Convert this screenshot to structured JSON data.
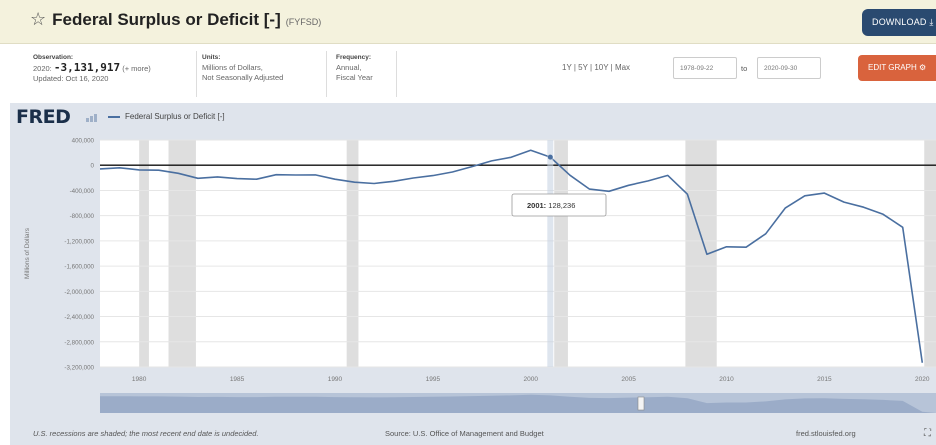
{
  "header": {
    "title": "Federal Surplus or Deficit [-]",
    "series_id": "(FYFSD)",
    "download_label": "DOWNLOAD"
  },
  "meta": {
    "observation_label": "Observation:",
    "observation_period": "2020:",
    "observation_value": "-3,131,917",
    "observation_more": "(+ more)",
    "updated": "Updated: Oct 16, 2020",
    "units_label": "Units:",
    "units_line1": "Millions of Dollars,",
    "units_line2": "Not Seasonally Adjusted",
    "frequency_label": "Frequency:",
    "frequency_line1": "Annual,",
    "frequency_line2": "Fiscal Year"
  },
  "controls": {
    "ranges": "1Y | 5Y | 10Y | Max",
    "start_date": "1978-09-22",
    "to_label": "to",
    "end_date": "2020-09-30",
    "edit_label": "EDIT GRAPH"
  },
  "logo": "FRED",
  "legend_label": "Federal Surplus or Deficit [-]",
  "tooltip": {
    "year": "2001:",
    "value": "128,236"
  },
  "footer": {
    "recession_note": "U.S. recessions are shaded; the most recent end date is undecided.",
    "source": "Source: U.S. Office of Management and Budget",
    "site": "fred.stlouisfed.org"
  },
  "chart_data": {
    "type": "line",
    "ylabel": "Millions of Dollars",
    "ylim": [
      -3200000,
      400000
    ],
    "yticks": [
      400000,
      0,
      -400000,
      -800000,
      -1200000,
      -1600000,
      -2000000,
      -2400000,
      -2800000,
      -3200000
    ],
    "ytick_labels": [
      "400,000",
      "0",
      "-400,000",
      "-800,000",
      "-1,200,000",
      "-1,600,000",
      "-2,000,000",
      "-2,400,000",
      "-2,800,000",
      "-3,200,000"
    ],
    "xlim": [
      1978,
      2020.7
    ],
    "xticks": [
      1980,
      1985,
      1990,
      1995,
      2000,
      2005,
      2010,
      2015,
      2020
    ],
    "xtick_labels": [
      "1980",
      "1985",
      "1990",
      "1995",
      "2000",
      "2005",
      "2010",
      "2015",
      "2020"
    ],
    "recessions": [
      [
        1980.0,
        1980.5
      ],
      [
        1981.5,
        1982.9
      ],
      [
        1990.6,
        1991.2
      ],
      [
        2001.2,
        2001.9
      ],
      [
        2007.9,
        2009.5
      ],
      [
        2020.1,
        2020.7
      ]
    ],
    "series": [
      {
        "name": "Federal Surplus or Deficit [-]",
        "color": "#4a6fa0",
        "x": [
          1978,
          1979,
          1980,
          1981,
          1982,
          1983,
          1984,
          1985,
          1986,
          1987,
          1988,
          1989,
          1990,
          1991,
          1992,
          1993,
          1994,
          1995,
          1996,
          1997,
          1998,
          1999,
          2000,
          2001,
          2002,
          2003,
          2004,
          2005,
          2006,
          2007,
          2008,
          2009,
          2010,
          2011,
          2012,
          2013,
          2014,
          2015,
          2016,
          2017,
          2018,
          2019,
          2020
        ],
        "y": [
          -59000,
          -41000,
          -74000,
          -79000,
          -128000,
          -208000,
          -185000,
          -212000,
          -221000,
          -150000,
          -155000,
          -153000,
          -221000,
          -269000,
          -290000,
          -255000,
          -203000,
          -164000,
          -107000,
          -22000,
          69000,
          126000,
          236000,
          128236,
          -158000,
          -378000,
          -413000,
          -318000,
          -248000,
          -161000,
          -459000,
          -1413000,
          -1294000,
          -1300000,
          -1087000,
          -680000,
          -485000,
          -442000,
          -585000,
          -665000,
          -779000,
          -984000,
          -3131917
        ]
      }
    ]
  }
}
